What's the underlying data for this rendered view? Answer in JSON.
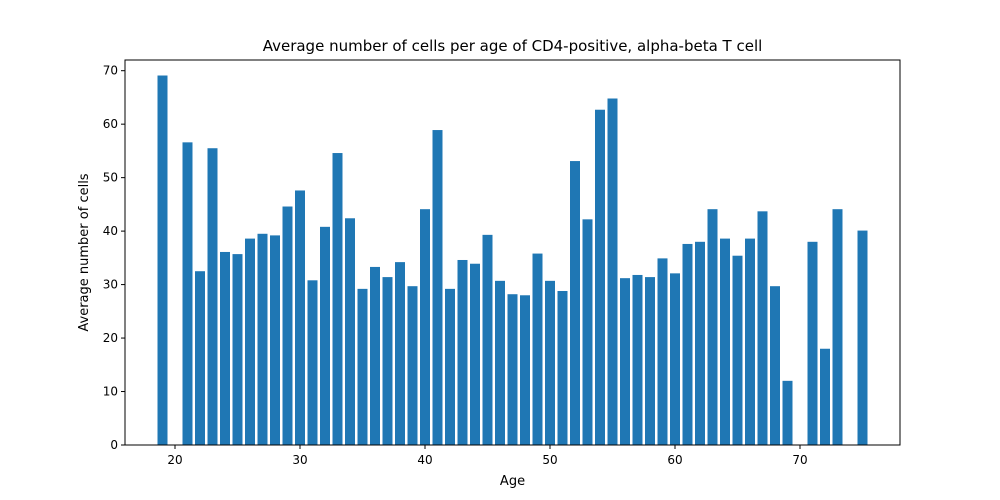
{
  "chart_data": {
    "type": "bar",
    "title": "Average number of cells per age of CD4-positive, alpha-beta T cell",
    "xlabel": "Age",
    "ylabel": "Average number of cells",
    "xlim": [
      16,
      78
    ],
    "ylim": [
      0,
      72
    ],
    "xticks": [
      20,
      30,
      40,
      50,
      60,
      70
    ],
    "yticks": [
      0,
      10,
      20,
      30,
      40,
      50,
      60,
      70
    ],
    "grid": false,
    "bar_color": "#1f77b4",
    "x": [
      19,
      21,
      22,
      23,
      24,
      25,
      26,
      27,
      28,
      29,
      30,
      31,
      32,
      33,
      34,
      35,
      36,
      37,
      38,
      39,
      40,
      41,
      42,
      43,
      44,
      45,
      46,
      47,
      48,
      49,
      50,
      51,
      52,
      53,
      54,
      55,
      56,
      57,
      58,
      59,
      60,
      61,
      62,
      63,
      64,
      65,
      66,
      67,
      68,
      69,
      71,
      72,
      73,
      75
    ],
    "values": [
      69.1,
      56.6,
      32.5,
      55.5,
      36.1,
      35.7,
      38.6,
      39.5,
      39.2,
      44.6,
      47.6,
      30.8,
      40.8,
      54.6,
      42.4,
      29.2,
      33.3,
      31.4,
      34.2,
      29.7,
      44.1,
      58.9,
      29.2,
      34.6,
      33.9,
      39.3,
      30.7,
      28.2,
      28.0,
      35.8,
      30.7,
      28.8,
      53.1,
      42.2,
      62.7,
      64.8,
      31.2,
      31.8,
      31.4,
      34.9,
      32.1,
      37.6,
      38.0,
      44.1,
      38.6,
      35.4,
      38.6,
      43.7,
      29.7,
      12.0,
      38.0,
      18.0,
      44.1,
      40.1
    ]
  }
}
